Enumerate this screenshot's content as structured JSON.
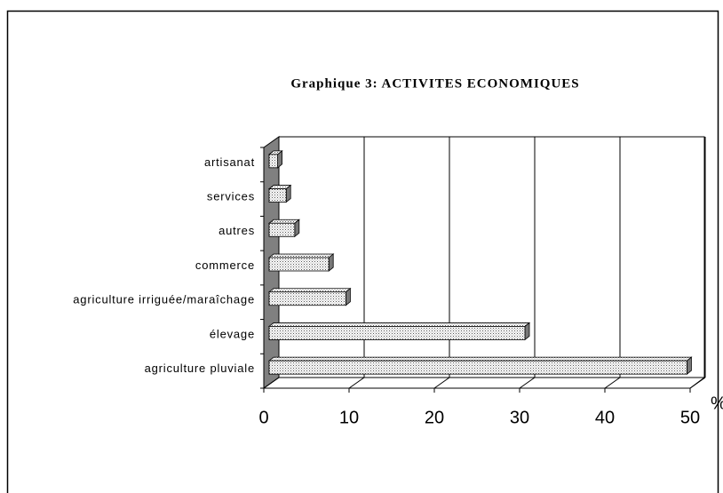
{
  "chart_data": {
    "type": "bar3d_horizontal",
    "title": "Graphique 3: ACTIVITES ECONOMIQUES",
    "x_label": "%",
    "categories": [
      "artisanat",
      "services",
      "autres",
      "commerce",
      "agriculture irriguée/maraîchage",
      "élevage",
      "agriculture pluviale"
    ],
    "values": [
      1,
      2,
      3,
      7,
      9,
      30,
      49
    ],
    "color": "#c8c8c8",
    "xlim": [
      0,
      50
    ],
    "xticks": [
      0,
      10,
      20,
      30,
      40,
      50
    ],
    "grid": true
  }
}
